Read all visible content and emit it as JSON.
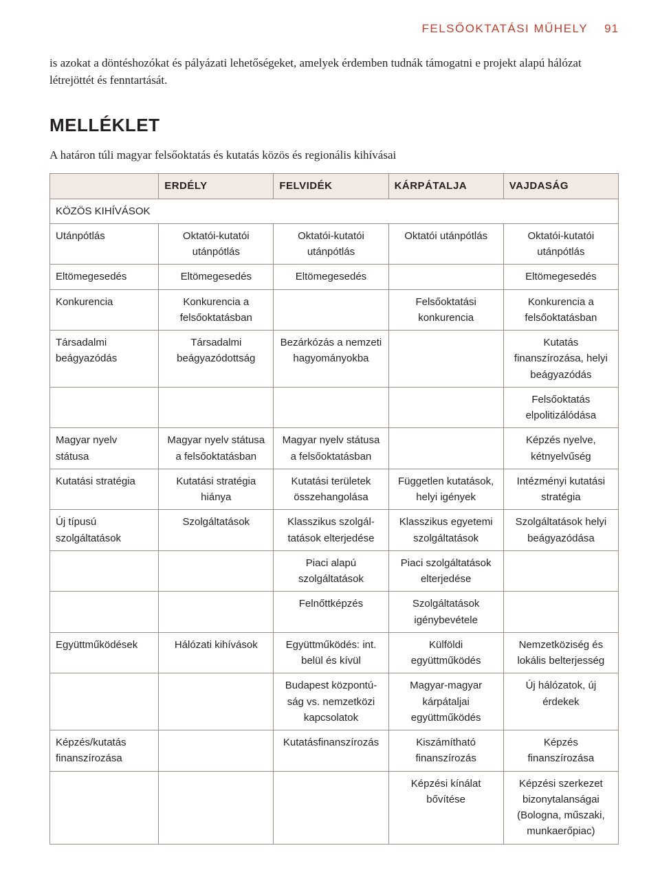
{
  "header": {
    "running": "FELSŐOKTATÁSI MŰHELY",
    "page": "91"
  },
  "intro": "is azokat a döntéshozókat és pályázati lehetőségeket, amelyek érdemben tudnák támogatni e projekt alapú hálózat létrejöttét és fenntartását.",
  "melleklet": "MELLÉKLET",
  "subtitle": "A határon túli magyar felsőoktatás és kutatás közös és regionális kihívásai",
  "cols": {
    "c1": "ERDÉLY",
    "c2": "FELVIDÉK",
    "c3": "KÁRPÁTALJA",
    "c4": "VAJDASÁG"
  },
  "section": "KÖZÖS KIHÍVÁSOK",
  "rows": {
    "r1": {
      "label": "Utánpótlás",
      "c1": "Oktatói-kutatói utánpótlás",
      "c2": "Oktatói-kutatói utánpótlás",
      "c3": "Oktatói utánpótlás",
      "c4": "Oktatói-kutatói utánpótlás"
    },
    "r2": {
      "label": "Eltömegesedés",
      "c1": "Eltömegesedés",
      "c2": "Eltömegesedés",
      "c3": "",
      "c4": "Eltömegesedés"
    },
    "r3": {
      "label": "Konkurencia",
      "c1": "Konkurencia a felsőoktatásban",
      "c2": "",
      "c3": "Felsőoktatási konkurencia",
      "c4": "Konkurencia a felsőoktatásban"
    },
    "r4": {
      "label": "Társadalmi beágyazódás",
      "c1": "Társadalmi beágyazódottság",
      "c2": "Bezárkózás a nemzeti hagyományokba",
      "c3": "",
      "c4": "Kutatás finanszírozása, helyi beágyazódás"
    },
    "r5": {
      "label": "",
      "c1": "",
      "c2": "",
      "c3": "",
      "c4": "Felsőoktatás elpolitizálódása"
    },
    "r6": {
      "label": "Magyar nyelv státusa",
      "c1": "Magyar nyelv státusa a felsőoktatásban",
      "c2": "Magyar nyelv státusa a felsőoktatásban",
      "c3": "",
      "c4": "Képzés nyelve, kétnyelvűség"
    },
    "r7": {
      "label": "Kutatási stratégia",
      "c1": "Kutatási stratégia hiánya",
      "c2": "Kutatási területek összehangolása",
      "c3": "Független kutatá­sok, helyi igények",
      "c4": "Intézményi kutatási stratégia"
    },
    "r8": {
      "label": "Új típusú szolgáltatások",
      "c1": "Szolgáltatások",
      "c2": "Klasszikus szolgál­tatások elterjedése",
      "c3": "Klasszikus egyete­mi szolgáltatások",
      "c4": "Szolgáltatások helyi beágyazódása"
    },
    "r9": {
      "label": "",
      "c1": "",
      "c2": "Piaci alapú szolgáltatások",
      "c3": "Piaci szolgáltatások elterjedése",
      "c4": ""
    },
    "r10": {
      "label": "",
      "c1": "",
      "c2": "Felnőttképzés",
      "c3": "Szolgáltatások igénybevétele",
      "c4": ""
    },
    "r11": {
      "label": "Együttműködések",
      "c1": "Hálózati kihívások",
      "c2": "Együttműködés: int. belül és kívül",
      "c3": "Külföldi együttműködés",
      "c4": "Nemzetköziség és lokális belterjesség"
    },
    "r12": {
      "label": "",
      "c1": "",
      "c2": "Budapest központú­ság vs. nemzetközi kapcsolatok",
      "c3": "Magyar-magyar kárpátaljai együttműködés",
      "c4": "Új hálózatok, új érdekek"
    },
    "r13": {
      "label": "Képzés/kutatás finanszírozása",
      "c1": "",
      "c2": "Kutatás­finanszírozás",
      "c3": "Kiszámítható finanszírozás",
      "c4": "Képzés finanszírozása"
    },
    "r14": {
      "label": "",
      "c1": "",
      "c2": "",
      "c3": "Képzési kínálat bővítése",
      "c4": "Képzési szerkezet bizonytalanságai (Bologna, műszaki, munkaerőpiac)"
    }
  }
}
